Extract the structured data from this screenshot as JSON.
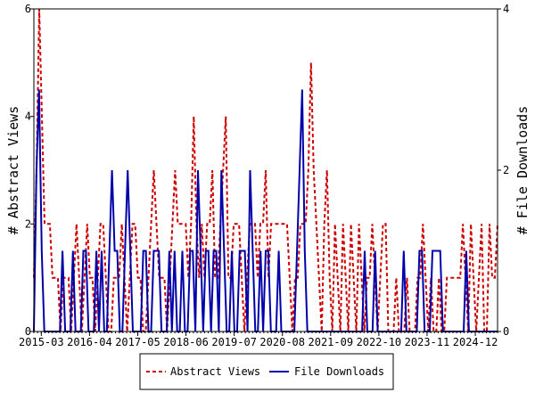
{
  "chart_data": {
    "type": "line",
    "title": "",
    "xlabel": "",
    "x_tick_labels": [
      "2015-03",
      "2016-04",
      "2017-05",
      "2018-06",
      "2019-07",
      "2020-08",
      "2021-09",
      "2022-10",
      "2023-11",
      "2024-12"
    ],
    "x_start": "2015-01",
    "x_end": "2025-06",
    "left_axis": {
      "label": "# Abstract Views",
      "ylim": [
        0,
        6
      ],
      "ticks": [
        0,
        2,
        4,
        6
      ]
    },
    "right_axis": {
      "label": "# File Downloads",
      "ylim": [
        0,
        4
      ],
      "ticks": [
        0,
        2,
        4
      ]
    },
    "grid": false,
    "legend_position": "bottom-center",
    "series": [
      {
        "name": "Abstract Views",
        "axis": "left",
        "color": "#cc0000",
        "style": "dashed",
        "values": [
          1,
          3,
          6,
          4,
          2,
          2,
          2,
          1,
          1,
          1,
          0,
          1,
          1,
          1,
          0,
          1,
          2,
          1,
          0,
          1,
          2,
          1,
          1,
          0,
          1,
          2,
          2,
          1,
          0,
          0,
          1,
          1,
          1,
          2,
          1,
          0,
          1,
          2,
          2,
          1,
          1,
          0,
          0,
          1,
          2,
          3,
          2,
          1,
          1,
          1,
          0,
          1,
          2,
          3,
          2,
          2,
          2,
          2,
          1,
          2,
          4,
          2,
          1,
          2,
          1,
          2,
          2,
          3,
          1,
          1,
          2,
          3,
          4,
          1,
          1,
          2,
          2,
          2,
          1,
          0,
          1,
          2,
          2,
          2,
          1,
          2,
          2,
          3,
          1,
          2,
          2,
          2,
          2,
          2,
          2,
          2,
          1,
          0,
          1,
          1,
          2,
          2,
          2,
          3,
          5,
          3,
          2,
          1,
          0,
          2,
          3,
          1,
          0,
          2,
          1,
          0,
          2,
          1,
          0,
          2,
          1,
          0,
          2,
          1,
          0,
          1,
          1,
          2,
          1,
          0,
          1,
          2,
          2,
          0,
          0,
          0,
          1,
          0,
          0,
          0,
          1,
          0,
          0,
          0,
          1,
          1,
          2,
          1,
          0,
          1,
          0,
          0,
          1,
          0,
          0,
          1,
          1,
          1,
          1,
          1,
          1,
          2,
          1,
          0,
          2,
          1,
          0,
          1,
          2,
          0,
          0,
          2,
          1,
          1,
          2
        ]
      },
      {
        "name": "File Downloads",
        "axis": "right",
        "color": "#0000aa",
        "style": "solid",
        "values": [
          0,
          2,
          3,
          1,
          0,
          0,
          0,
          0,
          0,
          0,
          0,
          1,
          0,
          0,
          0,
          1,
          0,
          0,
          0,
          1,
          1,
          0,
          0,
          0,
          1,
          0,
          1,
          0,
          0,
          1,
          2,
          1,
          1,
          0,
          0,
          1,
          2,
          1,
          0,
          0,
          0,
          0,
          1,
          1,
          0,
          0,
          1,
          1,
          1,
          0,
          0,
          0,
          1,
          0,
          1,
          0,
          0,
          1,
          0,
          0,
          1,
          1,
          0,
          2,
          1,
          0,
          1,
          1,
          0,
          1,
          1,
          0,
          2,
          1,
          0,
          0,
          1,
          0,
          0,
          1,
          1,
          1,
          0,
          2,
          1,
          0,
          0,
          1,
          0,
          1,
          1,
          0,
          0,
          0,
          1,
          0,
          0,
          0,
          0,
          0,
          0,
          1,
          2,
          3,
          1,
          0,
          0,
          0,
          0,
          0,
          0,
          0,
          0,
          0,
          0,
          0,
          0,
          0,
          0,
          0,
          0,
          0,
          0,
          0,
          0,
          0,
          0,
          1,
          0,
          0,
          0,
          1,
          0,
          0,
          0,
          0,
          0,
          0,
          0,
          0,
          0,
          0,
          1,
          0,
          0,
          0,
          0,
          0,
          1,
          1,
          0,
          0,
          0,
          1,
          1,
          1,
          1,
          0,
          0,
          0,
          0,
          0,
          0,
          0,
          0,
          0,
          1,
          0,
          0,
          0,
          0,
          0,
          0,
          0,
          0,
          0,
          0,
          0,
          0
        ]
      }
    ]
  }
}
